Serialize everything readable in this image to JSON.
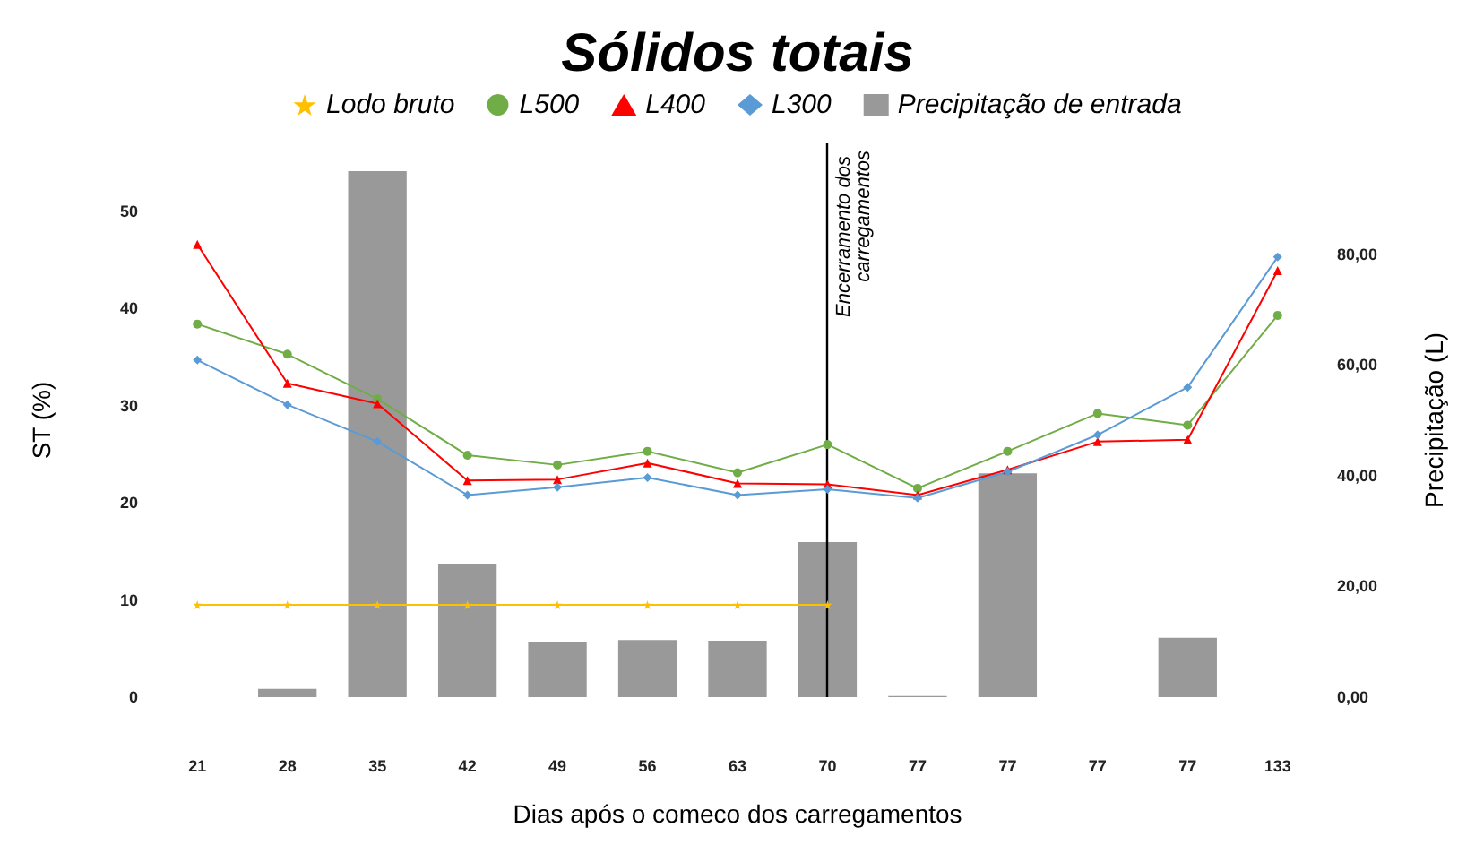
{
  "chart_data": {
    "type": "line",
    "title": "Sólidos totais",
    "xlabel": "Dias após o comeco dos carregamentos",
    "ylabel": "ST (%)",
    "y2label": "Precipitação (L)",
    "categories": [
      "21",
      "28",
      "35",
      "42",
      "49",
      "56",
      "63",
      "70",
      "77",
      "77",
      "77",
      "77",
      "133"
    ],
    "series": [
      {
        "name": "Lodo bruto",
        "color": "#ffc000",
        "marker": "star",
        "values": [
          9.5,
          9.5,
          9.5,
          9.5,
          9.5,
          9.5,
          9.5,
          9.5,
          null,
          null,
          null,
          null,
          null
        ]
      },
      {
        "name": "L500",
        "color": "#70ad47",
        "marker": "circle",
        "values": [
          38.4,
          35.3,
          30.7,
          24.9,
          23.9,
          25.3,
          23.1,
          26.0,
          21.5,
          25.3,
          29.2,
          28.0,
          39.3
        ]
      },
      {
        "name": "L400",
        "color": "#ff0000",
        "marker": "triangle",
        "values": [
          46.6,
          32.3,
          30.2,
          22.3,
          22.4,
          24.1,
          22.0,
          21.9,
          20.8,
          23.4,
          26.3,
          26.5,
          43.9
        ]
      },
      {
        "name": "L300",
        "color": "#5b9bd5",
        "marker": "diamond",
        "values": [
          34.7,
          30.1,
          26.3,
          20.8,
          21.6,
          22.6,
          20.8,
          21.4,
          20.5,
          23.2,
          27.0,
          31.9,
          45.3
        ]
      },
      {
        "name": "Precipitação de entrada",
        "type": "bar",
        "axis": "y2",
        "color": "#999999",
        "values": [
          null,
          1.5,
          95,
          24.1,
          10.0,
          10.3,
          10.2,
          28.0,
          0.2,
          40.4,
          null,
          10.7,
          null
        ]
      }
    ],
    "ylim": [
      0,
      57
    ],
    "yticks": [
      0,
      10,
      20,
      30,
      40,
      50
    ],
    "y2lim": [
      0,
      100
    ],
    "y2ticks": [
      {
        "value": 0,
        "label": "0,00"
      },
      {
        "value": 20,
        "label": "20,00"
      },
      {
        "value": 40,
        "label": "40,00"
      },
      {
        "value": 60,
        "label": "60,00"
      },
      {
        "value": 80,
        "label": "80,00"
      }
    ],
    "ref_lines": [
      {
        "axis": "x",
        "value": "70",
        "label": "Encerramento dos carregamentos",
        "color": "#000000"
      }
    ],
    "grid": false,
    "legend": "top"
  }
}
